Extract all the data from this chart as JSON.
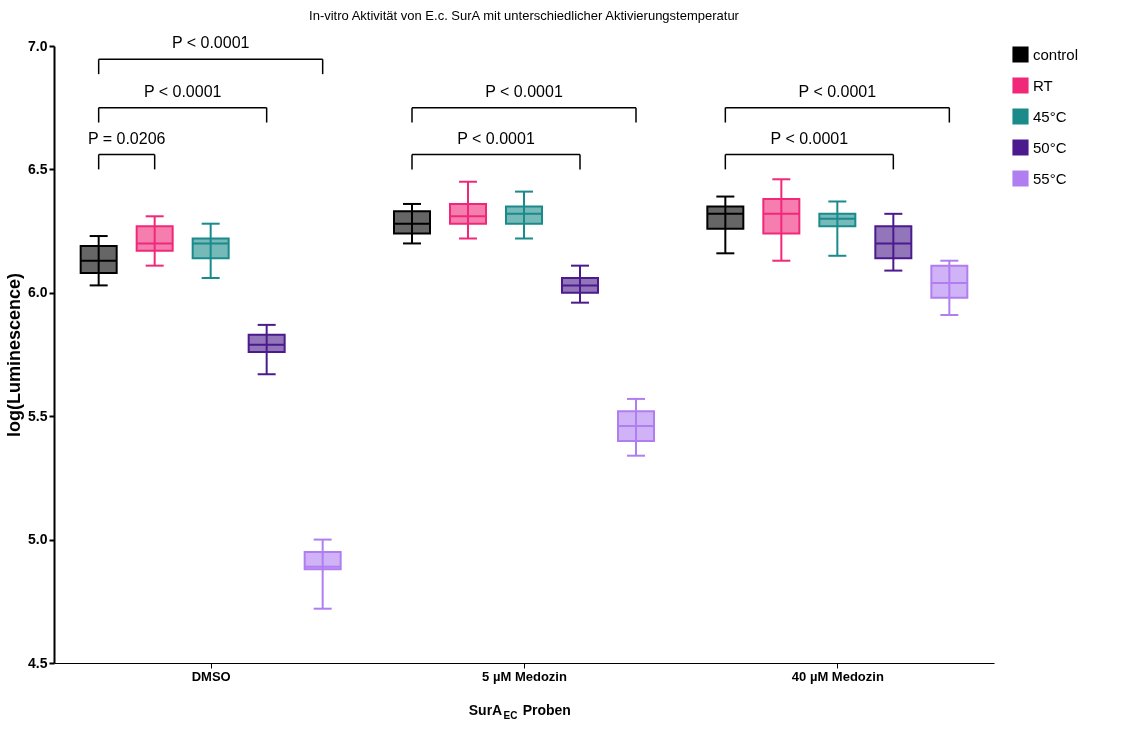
{
  "chart_data": {
    "type": "box",
    "title": "In-vitro Aktivität von E.c. SurA mit unterschiedlicher Aktivierungstemperatur",
    "xlabel": "SurA$_{EC}$ Proben",
    "ylabel": "log(Luminescence)",
    "categories": [
      "DMSO",
      "5 µM Medozin",
      "40 µM Medozin"
    ],
    "series": [
      {
        "name": "control",
        "color": "#000000",
        "boxes": [
          {
            "low": 6.03,
            "q1": 6.08,
            "median": 6.13,
            "q3": 6.19,
            "high": 6.23
          },
          {
            "low": 6.2,
            "q1": 6.24,
            "median": 6.28,
            "q3": 6.33,
            "high": 6.36
          },
          {
            "low": 6.16,
            "q1": 6.26,
            "median": 6.32,
            "q3": 6.35,
            "high": 6.39
          }
        ]
      },
      {
        "name": "RT",
        "color": "#f0287a",
        "boxes": [
          {
            "low": 6.11,
            "q1": 6.17,
            "median": 6.2,
            "q3": 6.27,
            "high": 6.31
          },
          {
            "low": 6.22,
            "q1": 6.28,
            "median": 6.31,
            "q3": 6.36,
            "high": 6.45
          },
          {
            "low": 6.13,
            "q1": 6.24,
            "median": 6.32,
            "q3": 6.38,
            "high": 6.46
          }
        ]
      },
      {
        "name": "45°C",
        "color": "#1a8a8a",
        "boxes": [
          {
            "low": 6.06,
            "q1": 6.14,
            "median": 6.2,
            "q3": 6.22,
            "high": 6.28
          },
          {
            "low": 6.22,
            "q1": 6.28,
            "median": 6.32,
            "q3": 6.35,
            "high": 6.41
          },
          {
            "low": 6.15,
            "q1": 6.27,
            "median": 6.3,
            "q3": 6.32,
            "high": 6.37
          }
        ]
      },
      {
        "name": "50°C",
        "color": "#4b1a8c",
        "boxes": [
          {
            "low": 5.67,
            "q1": 5.76,
            "median": 5.79,
            "q3": 5.83,
            "high": 5.87
          },
          {
            "low": 5.96,
            "q1": 6.0,
            "median": 6.03,
            "q3": 6.06,
            "high": 6.11
          },
          {
            "low": 6.09,
            "q1": 6.14,
            "median": 6.2,
            "q3": 6.27,
            "high": 6.32
          }
        ]
      },
      {
        "name": "55°C",
        "color": "#b07ef0",
        "boxes": [
          {
            "low": 4.72,
            "q1": 4.88,
            "median": 4.89,
            "q3": 4.95,
            "high": 5.0
          },
          {
            "low": 5.34,
            "q1": 5.4,
            "median": 5.46,
            "q3": 5.52,
            "high": 5.57
          },
          {
            "low": 5.91,
            "q1": 5.98,
            "median": 6.04,
            "q3": 6.11,
            "high": 6.13
          }
        ]
      }
    ],
    "ylim": [
      4.5,
      7.0
    ],
    "yticks": [
      {
        "value": 4.5,
        "label": "4.5"
      },
      {
        "value": 5,
        "label": "5.0"
      },
      {
        "value": 5.5,
        "label": "5.5"
      },
      {
        "value": 6,
        "label": "6.0"
      },
      {
        "value": 6.5,
        "label": "6.5"
      },
      {
        "value": 7,
        "label": "7.0"
      }
    ],
    "grid": false,
    "legend": "top right",
    "annotations": [
      "P < 0.0001",
      "P < 0.0001",
      "P = 0.0206",
      "P < 0.0001",
      "P < 0.0001",
      "P < 0.0001",
      "P < 0.0001"
    ]
  }
}
